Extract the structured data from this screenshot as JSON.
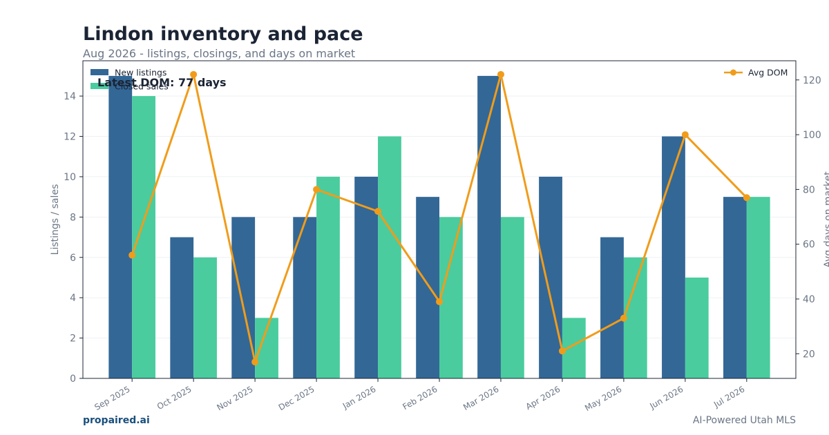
{
  "header": {
    "title": "Lindon inventory and pace",
    "subtitle": "Aug 2026 - listings, closings, and days on market"
  },
  "footer": {
    "brand": "propaired.ai",
    "tagline": "AI-Powered Utah MLS"
  },
  "chart_data": {
    "type": "bar",
    "categories": [
      "Sep 2025",
      "Oct 2025",
      "Nov 2025",
      "Dec 2025",
      "Jan 2026",
      "Feb 2026",
      "Mar 2026",
      "Apr 2026",
      "May 2026",
      "Jun 2026",
      "Jul 2026"
    ],
    "series": [
      {
        "name": "New listings",
        "type": "bar",
        "axis": "left",
        "color": "#336796",
        "values": [
          15,
          7,
          8,
          8,
          10,
          9,
          15,
          10,
          7,
          12,
          9
        ]
      },
      {
        "name": "Closed sales",
        "type": "bar",
        "axis": "left",
        "color": "#4acc9e",
        "values": [
          14,
          6,
          3,
          10,
          12,
          8,
          8,
          3,
          6,
          5,
          9
        ]
      },
      {
        "name": "Avg DOM",
        "type": "line",
        "axis": "right",
        "color": "#f09c1a",
        "values": [
          56,
          122,
          17,
          80,
          72,
          39,
          122,
          21,
          33,
          100,
          77
        ]
      }
    ],
    "ylabel": "Listings / sales",
    "y2label": "Avg days on market",
    "ylim": [
      0,
      15.75
    ],
    "y2lim": [
      11,
      127
    ],
    "yticks": [
      0,
      2,
      4,
      6,
      8,
      10,
      12,
      14
    ],
    "y2ticks": [
      20,
      40,
      60,
      80,
      100,
      120
    ],
    "grid": true,
    "legend_left": "top-left",
    "legend_right": "top-right",
    "annotation": "Latest DOM: 77 days"
  }
}
